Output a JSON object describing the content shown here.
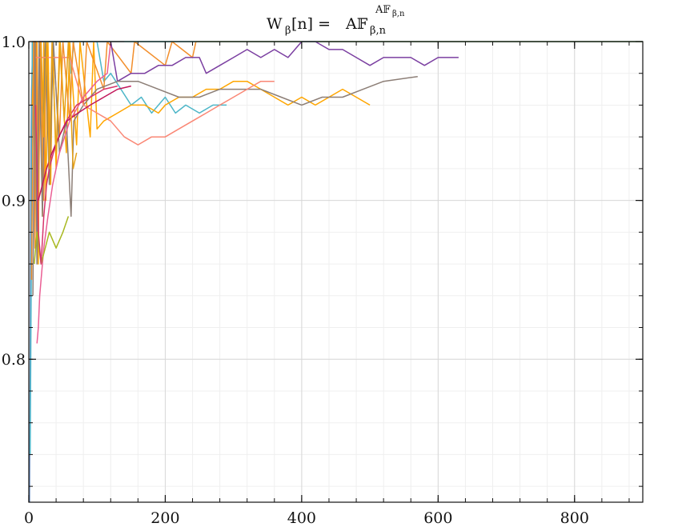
{
  "chart_data": {
    "type": "line",
    "title": {
      "lhs_main": "W",
      "lhs_sub": "β",
      "lhs_arg": "[n] =",
      "rhs_main": "A𝔽",
      "rhs_sub": "β,n",
      "rhs_sup": "A𝔽",
      "rhs_sup_sub": "β,n"
    },
    "xlabel": "",
    "ylabel": "",
    "xlim": [
      0,
      900
    ],
    "ylim": [
      0.71,
      1.0
    ],
    "x_ticks": [
      0,
      200,
      400,
      600,
      800
    ],
    "x_tick_labels": [
      "0",
      "200",
      "400",
      "600",
      "800"
    ],
    "y_ticks": [
      0.8,
      0.9,
      1.0
    ],
    "y_tick_labels": [
      "0.8",
      "0.9",
      "1.0"
    ],
    "x_minor_step": 40,
    "y_minor_step": 0.02,
    "grid": true,
    "legend": "none",
    "series": [
      {
        "color": "#6c8ebf",
        "points": [
          [
            1,
            0.71
          ],
          [
            2,
            0.8
          ],
          [
            3,
            0.93
          ],
          [
            4,
            0.97
          ],
          [
            6,
            1.0
          ],
          [
            900,
            1.0
          ]
        ]
      },
      {
        "color": "#4db6c8",
        "points": [
          [
            2,
            0.74
          ],
          [
            4,
            0.88
          ],
          [
            5,
            1.0
          ],
          [
            8,
            0.93
          ],
          [
            10,
            1.0
          ],
          [
            60,
            1.0
          ],
          [
            62,
            0.98
          ],
          [
            66,
            1.0
          ],
          [
            100,
            1.0
          ],
          [
            110,
            0.975
          ],
          [
            120,
            0.98
          ],
          [
            150,
            0.96
          ],
          [
            165,
            0.965
          ],
          [
            180,
            0.955
          ],
          [
            200,
            0.965
          ],
          [
            215,
            0.955
          ],
          [
            230,
            0.96
          ],
          [
            250,
            0.955
          ],
          [
            270,
            0.96
          ],
          [
            290,
            0.96
          ]
        ]
      },
      {
        "color": "#ffa600",
        "points": [
          [
            5,
            0.96
          ],
          [
            8,
            1.0
          ],
          [
            10,
            0.92
          ],
          [
            12,
            1.0
          ],
          [
            14,
            0.86
          ],
          [
            16,
            1.0
          ],
          [
            20,
            0.89
          ],
          [
            22,
            1.0
          ],
          [
            25,
            0.9
          ],
          [
            28,
            1.0
          ],
          [
            32,
            0.91
          ],
          [
            35,
            1.0
          ],
          [
            40,
            0.92
          ],
          [
            45,
            1.0
          ],
          [
            55,
            0.93
          ],
          [
            60,
            1.0
          ],
          [
            70,
            0.935
          ],
          [
            75,
            1.0
          ],
          [
            90,
            0.94
          ],
          [
            95,
            1.0
          ],
          [
            100,
            0.945
          ],
          [
            110,
            0.95
          ],
          [
            130,
            0.955
          ],
          [
            150,
            0.96
          ],
          [
            170,
            0.96
          ],
          [
            190,
            0.955
          ],
          [
            200,
            0.96
          ],
          [
            220,
            0.965
          ],
          [
            240,
            0.965
          ],
          [
            260,
            0.97
          ],
          [
            280,
            0.97
          ],
          [
            300,
            0.975
          ],
          [
            320,
            0.975
          ],
          [
            340,
            0.97
          ],
          [
            360,
            0.965
          ],
          [
            380,
            0.96
          ],
          [
            400,
            0.965
          ],
          [
            420,
            0.96
          ],
          [
            440,
            0.965
          ],
          [
            460,
            0.97
          ],
          [
            480,
            0.965
          ],
          [
            500,
            0.96
          ]
        ]
      },
      {
        "color": "#f28e2b",
        "points": [
          [
            4,
            0.85
          ],
          [
            7,
            1.0
          ],
          [
            9,
            0.87
          ],
          [
            11,
            1.0
          ],
          [
            14,
            0.88
          ],
          [
            17,
            1.0
          ],
          [
            22,
            0.9
          ],
          [
            26,
            1.0
          ],
          [
            31,
            0.92
          ],
          [
            35,
            1.0
          ],
          [
            45,
            0.94
          ],
          [
            50,
            1.0
          ],
          [
            60,
            0.95
          ],
          [
            65,
            1.0
          ],
          [
            80,
            0.96
          ],
          [
            85,
            1.0
          ],
          [
            110,
            0.97
          ],
          [
            115,
            1.0
          ],
          [
            150,
            0.98
          ],
          [
            155,
            1.0
          ],
          [
            200,
            0.985
          ],
          [
            210,
            1.0
          ],
          [
            240,
            0.99
          ],
          [
            245,
            1.0
          ],
          [
            900,
            1.0
          ]
        ]
      },
      {
        "color": "#7b3fa1",
        "points": [
          [
            15,
            1.0
          ],
          [
            120,
            1.0
          ],
          [
            130,
            0.975
          ],
          [
            150,
            0.98
          ],
          [
            170,
            0.98
          ],
          [
            190,
            0.985
          ],
          [
            210,
            0.985
          ],
          [
            230,
            0.99
          ],
          [
            250,
            0.99
          ],
          [
            260,
            0.98
          ],
          [
            280,
            0.985
          ],
          [
            300,
            0.99
          ],
          [
            320,
            0.995
          ],
          [
            340,
            0.99
          ],
          [
            360,
            0.995
          ],
          [
            380,
            0.99
          ],
          [
            400,
            1.0
          ],
          [
            420,
            1.0
          ],
          [
            440,
            0.995
          ],
          [
            460,
            0.995
          ],
          [
            480,
            0.99
          ],
          [
            500,
            0.985
          ],
          [
            520,
            0.99
          ],
          [
            540,
            0.99
          ],
          [
            560,
            0.99
          ],
          [
            580,
            0.985
          ],
          [
            600,
            0.99
          ],
          [
            630,
            0.99
          ]
        ]
      },
      {
        "color": "#8c7e76",
        "points": [
          [
            6,
            0.84
          ],
          [
            9,
            1.0
          ],
          [
            12,
            0.86
          ],
          [
            15,
            1.0
          ],
          [
            20,
            0.89
          ],
          [
            24,
            1.0
          ],
          [
            30,
            0.91
          ],
          [
            36,
            1.0
          ],
          [
            45,
            0.93
          ],
          [
            55,
            0.95
          ],
          [
            62,
            0.89
          ],
          [
            66,
            0.95
          ],
          [
            80,
            0.96
          ],
          [
            100,
            0.97
          ],
          [
            130,
            0.975
          ],
          [
            160,
            0.975
          ],
          [
            190,
            0.97
          ],
          [
            220,
            0.965
          ],
          [
            250,
            0.965
          ],
          [
            280,
            0.97
          ],
          [
            310,
            0.97
          ],
          [
            340,
            0.97
          ],
          [
            370,
            0.965
          ],
          [
            400,
            0.96
          ],
          [
            430,
            0.965
          ],
          [
            460,
            0.965
          ],
          [
            490,
            0.97
          ],
          [
            520,
            0.975
          ],
          [
            570,
            0.978
          ]
        ]
      },
      {
        "color": "#fa8775",
        "points": [
          [
            10,
            0.99
          ],
          [
            60,
            0.99
          ],
          [
            80,
            0.96
          ],
          [
            100,
            0.955
          ],
          [
            120,
            0.95
          ],
          [
            140,
            0.94
          ],
          [
            160,
            0.935
          ],
          [
            180,
            0.94
          ],
          [
            200,
            0.94
          ],
          [
            220,
            0.945
          ],
          [
            240,
            0.95
          ],
          [
            260,
            0.955
          ],
          [
            280,
            0.96
          ],
          [
            300,
            0.965
          ],
          [
            320,
            0.97
          ],
          [
            340,
            0.975
          ],
          [
            360,
            0.975
          ]
        ]
      },
      {
        "color": "#ea5f94",
        "points": [
          [
            12,
            0.81
          ],
          [
            14,
            0.82
          ],
          [
            16,
            0.84
          ],
          [
            18,
            0.85
          ],
          [
            22,
            0.87
          ],
          [
            28,
            0.89
          ],
          [
            35,
            0.91
          ],
          [
            45,
            0.93
          ],
          [
            60,
            0.95
          ],
          [
            80,
            0.965
          ],
          [
            100,
            0.975
          ],
          [
            115,
            0.98
          ],
          [
            120,
            1.0
          ],
          [
            140,
            1.0
          ]
        ]
      },
      {
        "color": "#a8b820",
        "points": [
          [
            8,
            0.86
          ],
          [
            12,
            0.88
          ],
          [
            18,
            0.86
          ],
          [
            24,
            0.87
          ],
          [
            30,
            0.88
          ],
          [
            40,
            0.87
          ],
          [
            50,
            0.88
          ],
          [
            58,
            0.89
          ]
        ]
      },
      {
        "color": "#d6336c",
        "points": [
          [
            10,
            0.96
          ],
          [
            14,
            0.88
          ],
          [
            18,
            0.86
          ],
          [
            22,
            0.89
          ],
          [
            26,
            0.91
          ],
          [
            30,
            0.92
          ],
          [
            36,
            0.93
          ],
          [
            44,
            0.94
          ],
          [
            55,
            0.95
          ],
          [
            70,
            0.96
          ],
          [
            90,
            0.965
          ],
          [
            110,
            0.97
          ],
          [
            130,
            0.972
          ]
        ]
      },
      {
        "color": "#c2185b",
        "points": [
          [
            14,
            0.9
          ],
          [
            20,
            0.91
          ],
          [
            26,
            0.92
          ],
          [
            34,
            0.93
          ],
          [
            44,
            0.94
          ],
          [
            56,
            0.95
          ],
          [
            72,
            0.955
          ],
          [
            90,
            0.96
          ],
          [
            110,
            0.965
          ],
          [
            130,
            0.97
          ],
          [
            150,
            0.972
          ]
        ]
      },
      {
        "color": "#e6a117",
        "points": [
          [
            18,
            1.0
          ],
          [
            22,
            0.94
          ],
          [
            26,
            1.0
          ],
          [
            30,
            0.92
          ],
          [
            34,
            1.0
          ],
          [
            40,
            0.93
          ],
          [
            46,
            1.0
          ],
          [
            52,
            0.95
          ],
          [
            58,
            1.0
          ],
          [
            65,
            0.92
          ],
          [
            70,
            0.93
          ]
        ]
      },
      {
        "color": "#5fbf9f",
        "points": [
          [
            20,
            1.0
          ],
          [
            900,
            1.0
          ]
        ]
      }
    ]
  }
}
